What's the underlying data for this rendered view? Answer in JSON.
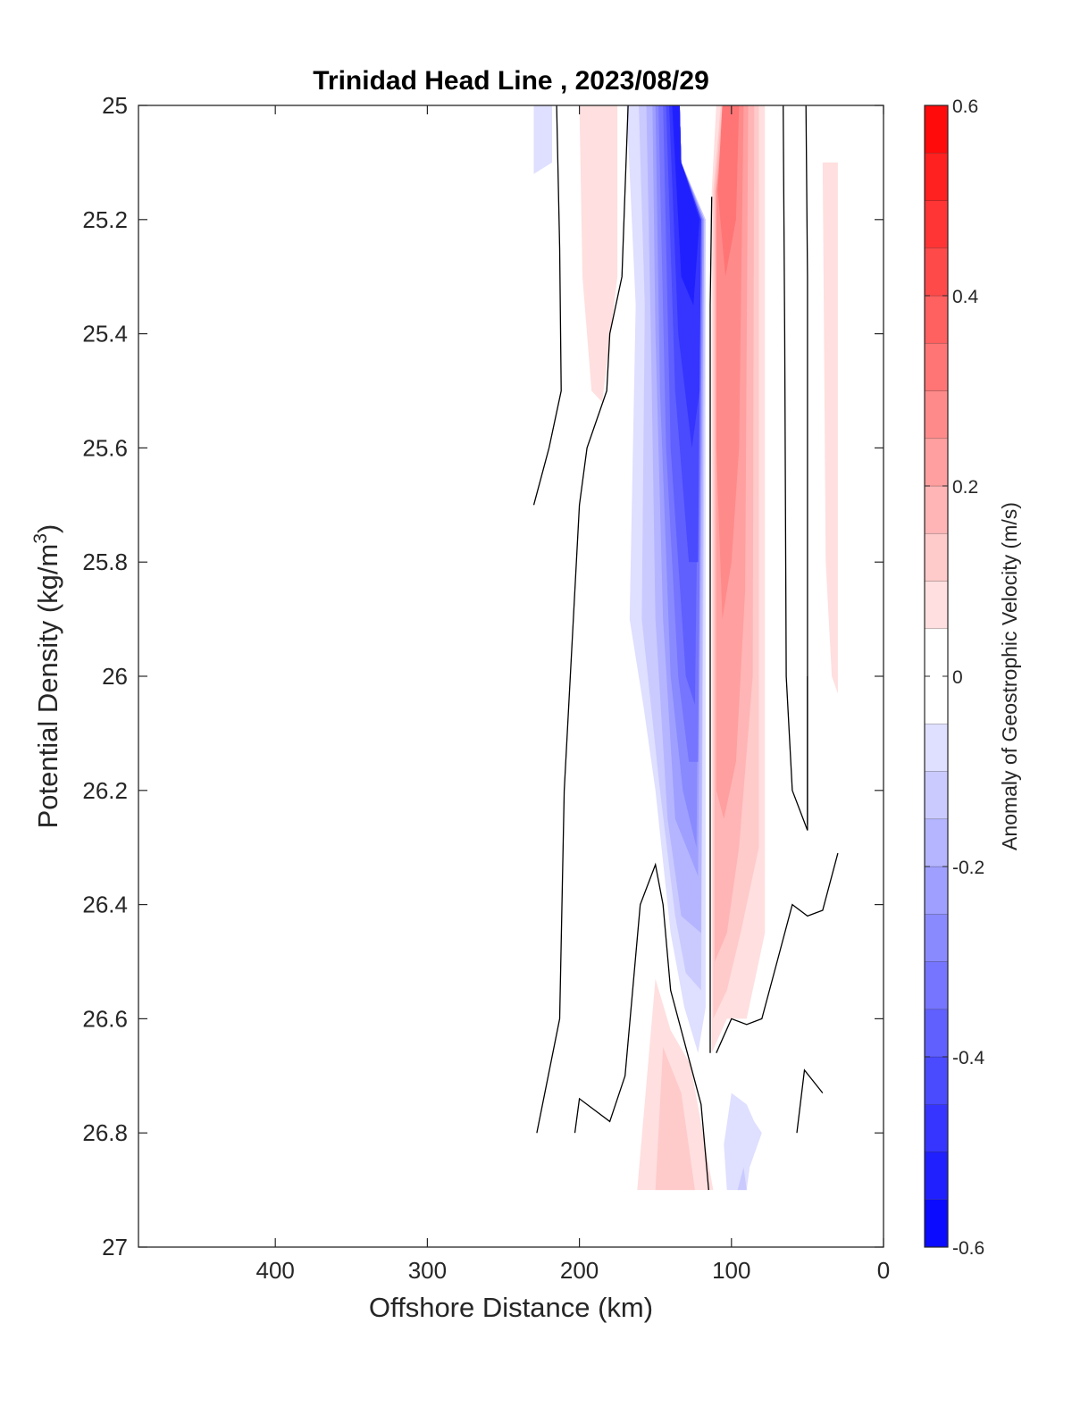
{
  "chart_data": {
    "type": "heatmap",
    "subtype": "filled contour section",
    "title": "Trinidad Head Line , 2023/08/29",
    "xlabel": "Offshore Distance (km)",
    "ylabel_main": "Potential Density (kg/m",
    "ylabel_sup": "3",
    "ylabel_tail": ")",
    "colorbar_label": "Anomaly of Geostrophic Velocity (m/s)",
    "xlim": [
      490,
      0
    ],
    "x_reversed": true,
    "ylim": [
      25,
      27
    ],
    "y_reversed": true,
    "x_ticks": [
      400,
      300,
      200,
      100,
      0
    ],
    "x_tick_labels": [
      "400",
      "300",
      "200",
      "100",
      "0"
    ],
    "y_ticks": [
      25,
      25.2,
      25.4,
      25.6,
      25.8,
      26,
      26.2,
      26.4,
      26.6,
      26.8,
      27
    ],
    "y_tick_labels": [
      "25",
      "25.2",
      "25.4",
      "25.6",
      "25.8",
      "26",
      "26.2",
      "26.4",
      "26.6",
      "26.8",
      "27"
    ],
    "clim": [
      -0.6,
      0.6
    ],
    "colorbar_ticks": [
      0.6,
      0.4,
      0.2,
      0,
      -0.2,
      -0.4,
      -0.6
    ],
    "colorbar_tick_labels": [
      "0.6",
      "0.4",
      "0.2",
      "0",
      "-0.2",
      "-0.4",
      "-0.6"
    ],
    "colorbar_levels": [
      -0.6,
      -0.55,
      -0.5,
      -0.45,
      -0.4,
      -0.35,
      -0.3,
      -0.25,
      -0.2,
      -0.15,
      -0.1,
      -0.05,
      0.05,
      0.1,
      0.15,
      0.2,
      0.25,
      0.3,
      0.35,
      0.4,
      0.45,
      0.5,
      0.55,
      0.6
    ],
    "colormap": {
      "negative": "#0000ff",
      "zero": "#ffffff",
      "positive": "#ff0000"
    },
    "filled_regions": [
      {
        "name": "offshore-weak-negative",
        "value": -0.075,
        "points": [
          [
            230,
            25
          ],
          [
            218,
            25
          ],
          [
            218,
            25.1
          ],
          [
            230,
            25.12
          ]
        ]
      },
      {
        "name": "offshore-weak-positive",
        "value": 0.075,
        "points": [
          [
            200,
            25
          ],
          [
            175,
            25
          ],
          [
            175,
            25.3
          ],
          [
            185,
            25.52
          ],
          [
            192,
            25.5
          ],
          [
            198,
            25.3
          ]
        ]
      },
      {
        "name": "jet-negative-075",
        "value": -0.075,
        "points": [
          [
            169,
            25
          ],
          [
            163,
            25.35
          ],
          [
            167,
            25.9
          ],
          [
            158,
            26.05
          ],
          [
            150,
            26.2
          ],
          [
            140,
            26.45
          ],
          [
            131,
            26.58
          ],
          [
            122,
            26.66
          ],
          [
            117,
            26.58
          ],
          [
            117,
            25.2
          ],
          [
            133,
            25.1
          ],
          [
            134,
            25
          ]
        ]
      },
      {
        "name": "jet-negative-125",
        "value": -0.125,
        "points": [
          [
            161,
            25
          ],
          [
            157,
            25.35
          ],
          [
            159,
            25.9
          ],
          [
            147,
            26.2
          ],
          [
            137,
            26.42
          ],
          [
            130,
            26.52
          ],
          [
            120,
            26.55
          ],
          [
            117,
            25.2
          ],
          [
            133,
            25.1
          ],
          [
            134,
            25
          ]
        ]
      },
      {
        "name": "jet-negative-175",
        "value": -0.175,
        "points": [
          [
            156,
            25
          ],
          [
            153,
            25.4
          ],
          [
            150,
            25.9
          ],
          [
            142,
            26.25
          ],
          [
            133,
            26.42
          ],
          [
            120,
            26.45
          ],
          [
            118,
            25.2
          ],
          [
            133,
            25.1
          ],
          [
            134,
            25
          ]
        ]
      },
      {
        "name": "jet-negative-225",
        "value": -0.225,
        "points": [
          [
            152,
            25
          ],
          [
            150,
            25.4
          ],
          [
            145,
            25.9
          ],
          [
            137,
            26.25
          ],
          [
            122,
            26.35
          ],
          [
            118,
            25.2
          ],
          [
            133,
            25.1
          ],
          [
            134,
            25
          ]
        ]
      },
      {
        "name": "jet-negative-275",
        "value": -0.275,
        "points": [
          [
            150,
            25
          ],
          [
            147,
            25.5
          ],
          [
            140,
            26
          ],
          [
            132,
            26.2
          ],
          [
            123,
            26.3
          ],
          [
            119,
            25.2
          ],
          [
            133,
            25.1
          ],
          [
            134,
            25
          ]
        ]
      },
      {
        "name": "jet-negative-325",
        "value": -0.325,
        "points": [
          [
            148,
            25
          ],
          [
            143,
            25.6
          ],
          [
            135,
            26
          ],
          [
            128,
            26.15
          ],
          [
            122,
            26.15
          ],
          [
            119,
            25.2
          ],
          [
            133,
            25.1
          ],
          [
            134,
            25
          ]
        ]
      },
      {
        "name": "jet-negative-375",
        "value": -0.375,
        "points": [
          [
            145,
            25
          ],
          [
            140,
            25.6
          ],
          [
            130,
            26
          ],
          [
            124,
            26.05
          ],
          [
            120,
            25.2
          ],
          [
            133,
            25.1
          ],
          [
            134,
            25
          ]
        ]
      },
      {
        "name": "jet-negative-425",
        "value": -0.425,
        "points": [
          [
            143,
            25
          ],
          [
            137,
            25.5
          ],
          [
            128,
            25.8
          ],
          [
            122,
            25.8
          ],
          [
            120,
            25.2
          ],
          [
            133,
            25.1
          ],
          [
            134,
            25
          ]
        ]
      },
      {
        "name": "jet-negative-475",
        "value": -0.475,
        "points": [
          [
            141,
            25
          ],
          [
            135,
            25.4
          ],
          [
            126,
            25.6
          ],
          [
            121,
            25.5
          ],
          [
            120,
            25.2
          ],
          [
            133,
            25.1
          ],
          [
            134,
            25
          ]
        ]
      },
      {
        "name": "jet-negative-525",
        "value": -0.525,
        "points": [
          [
            139,
            25
          ],
          [
            133,
            25.3
          ],
          [
            125,
            25.35
          ],
          [
            121,
            25.2
          ],
          [
            133,
            25.1
          ],
          [
            134,
            25
          ]
        ]
      },
      {
        "name": "jet-positive-075",
        "value": 0.075,
        "points": [
          [
            110,
            25
          ],
          [
            78,
            25
          ],
          [
            78,
            26.45
          ],
          [
            90,
            26.6
          ],
          [
            103,
            26.6
          ],
          [
            113,
            26.66
          ],
          [
            113,
            25.15
          ]
        ]
      },
      {
        "name": "jet-positive-125",
        "value": 0.125,
        "points": [
          [
            107,
            25
          ],
          [
            82,
            25
          ],
          [
            82,
            26.3
          ],
          [
            94,
            26.45
          ],
          [
            103,
            26.55
          ],
          [
            112,
            26.6
          ],
          [
            112,
            25.15
          ]
        ]
      },
      {
        "name": "jet-positive-175",
        "value": 0.175,
        "points": [
          [
            106,
            25
          ],
          [
            85,
            25
          ],
          [
            86,
            26.0
          ],
          [
            95,
            26.3
          ],
          [
            103,
            26.45
          ],
          [
            111,
            26.5
          ],
          [
            111,
            25.15
          ]
        ]
      },
      {
        "name": "jet-positive-225",
        "value": 0.225,
        "points": [
          [
            105,
            25
          ],
          [
            89,
            25
          ],
          [
            91,
            25.85
          ],
          [
            97,
            26.15
          ],
          [
            105,
            26.25
          ],
          [
            110,
            26.2
          ],
          [
            110,
            25.15
          ]
        ]
      },
      {
        "name": "jet-positive-275",
        "value": 0.275,
        "points": [
          [
            103,
            25
          ],
          [
            92,
            25
          ],
          [
            95,
            25.6
          ],
          [
            100,
            25.8
          ],
          [
            106,
            25.9
          ],
          [
            110,
            25.6
          ],
          [
            110,
            25.15
          ]
        ]
      },
      {
        "name": "jet-positive-325",
        "value": 0.325,
        "points": [
          [
            101,
            25
          ],
          [
            95,
            25
          ],
          [
            97,
            25.2
          ],
          [
            104,
            25.3
          ],
          [
            109,
            25.15
          ],
          [
            106,
            25
          ]
        ]
      },
      {
        "name": "nearshore-weak-positive",
        "value": 0.075,
        "points": [
          [
            40,
            25.1
          ],
          [
            30,
            25.1
          ],
          [
            30,
            26.03
          ],
          [
            34,
            26.0
          ],
          [
            38,
            25.8
          ]
        ]
      },
      {
        "name": "deep-positive-075",
        "value": 0.075,
        "points": [
          [
            150,
            26.53
          ],
          [
            162,
            26.9
          ],
          [
            112,
            26.9
          ],
          [
            127,
            26.68
          ],
          [
            140,
            26.62
          ]
        ]
      },
      {
        "name": "deep-positive-125",
        "value": 0.125,
        "points": [
          [
            145,
            26.65
          ],
          [
            150,
            26.9
          ],
          [
            124,
            26.9
          ],
          [
            133,
            26.73
          ]
        ]
      },
      {
        "name": "deep-negative-075",
        "value": -0.075,
        "points": [
          [
            100,
            26.73
          ],
          [
            90,
            26.75
          ],
          [
            85,
            26.78
          ],
          [
            80,
            26.8
          ],
          [
            88,
            26.86
          ],
          [
            90,
            26.9
          ],
          [
            103,
            26.9
          ],
          [
            105,
            26.82
          ]
        ]
      },
      {
        "name": "deep-negative-125",
        "value": -0.125,
        "points": [
          [
            92,
            26.86
          ],
          [
            90,
            26.9
          ],
          [
            96,
            26.9
          ]
        ]
      }
    ],
    "contour_lines": [
      {
        "name": "zero-contour-far-offshore",
        "points": [
          [
            215,
            25
          ],
          [
            213,
            25.25
          ],
          [
            212,
            25.5
          ],
          [
            220,
            25.6
          ],
          [
            230,
            25.7
          ]
        ]
      },
      {
        "name": "zero-contour-offshore",
        "points": [
          [
            168,
            25
          ],
          [
            172,
            25.3
          ],
          [
            180,
            25.4
          ],
          [
            182,
            25.5
          ],
          [
            195,
            25.6
          ],
          [
            200,
            25.7
          ],
          [
            210,
            26.2
          ],
          [
            213,
            26.6
          ],
          [
            228,
            26.8
          ]
        ]
      },
      {
        "name": "zero-contour-jet-divider",
        "points": [
          [
            113,
            25.16
          ],
          [
            114,
            25.35
          ],
          [
            114,
            26.66
          ]
        ]
      },
      {
        "name": "zero-contour-inshore-1",
        "points": [
          [
            66,
            25
          ],
          [
            65,
            25.4
          ],
          [
            64,
            26
          ],
          [
            60,
            26.2
          ],
          [
            50,
            26.27
          ],
          [
            50,
            26
          ]
        ]
      },
      {
        "name": "zero-contour-inshore-2",
        "points": [
          [
            51,
            25
          ],
          [
            50,
            25.3
          ],
          [
            50,
            26.26
          ]
        ]
      },
      {
        "name": "zero-contour-deep-left",
        "points": [
          [
            203,
            26.8
          ],
          [
            200,
            26.74
          ],
          [
            180,
            26.78
          ],
          [
            170,
            26.7
          ],
          [
            160,
            26.4
          ],
          [
            150,
            26.33
          ],
          [
            145,
            26.4
          ],
          [
            140,
            26.55
          ],
          [
            130,
            26.65
          ],
          [
            120,
            26.75
          ],
          [
            115,
            26.9
          ]
        ]
      },
      {
        "name": "zero-contour-deep-right",
        "points": [
          [
            110,
            26.66
          ],
          [
            100,
            26.6
          ],
          [
            90,
            26.61
          ],
          [
            80,
            26.6
          ],
          [
            70,
            26.5
          ],
          [
            60,
            26.4
          ],
          [
            50,
            26.42
          ],
          [
            40,
            26.41
          ],
          [
            30,
            26.31
          ]
        ]
      },
      {
        "name": "zero-contour-deep-small",
        "points": [
          [
            57,
            26.8
          ],
          [
            52,
            26.69
          ],
          [
            40,
            26.73
          ]
        ]
      }
    ]
  }
}
